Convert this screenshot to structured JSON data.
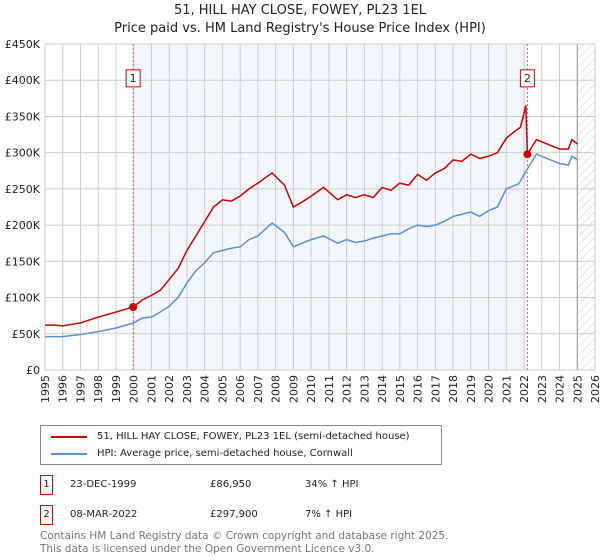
{
  "chart_data": {
    "type": "line",
    "title": "51, HILL HAY CLOSE, FOWEY, PL23 1EL",
    "subtitle": "Price paid vs. HM Land Registry's House Price Index (HPI)",
    "xlim": [
      1995,
      2026
    ],
    "ylim": [
      0,
      450000
    ],
    "x_ticks": [
      "1995",
      "1996",
      "1997",
      "1998",
      "1999",
      "2000",
      "2001",
      "2002",
      "2003",
      "2004",
      "2005",
      "2006",
      "2007",
      "2008",
      "2009",
      "2010",
      "2011",
      "2012",
      "2013",
      "2014",
      "2015",
      "2016",
      "2017",
      "2018",
      "2019",
      "2020",
      "2021",
      "2022",
      "2023",
      "2024",
      "2025",
      "2026"
    ],
    "y_ticks": [
      "£0",
      "£50K",
      "£100K",
      "£150K",
      "£200K",
      "£250K",
      "£300K",
      "£350K",
      "£400K",
      "£450K"
    ],
    "grid": true,
    "series": [
      {
        "name": "51, HILL HAY CLOSE, FOWEY, PL23 1EL (semi-detached house)",
        "color": "#cc0000",
        "x": [
          1995,
          1995.5,
          1996,
          1997,
          1998,
          1999,
          1999.97,
          2000.5,
          2001,
          2001.5,
          2002,
          2002.5,
          2003,
          2003.5,
          2004,
          2004.5,
          2005,
          2005.5,
          2006,
          2006.5,
          2007,
          2007.8,
          2008.5,
          2009,
          2009.5,
          2010,
          2010.7,
          2011.5,
          2012,
          2012.5,
          2013,
          2013.5,
          2014,
          2014.5,
          2015,
          2015.5,
          2016,
          2016.5,
          2017,
          2017.5,
          2018,
          2018.5,
          2019,
          2019.5,
          2020,
          2020.5,
          2021,
          2021.5,
          2021.8,
          2022.1,
          2022.19,
          2022.7,
          2023,
          2023.5,
          2024,
          2024.5,
          2024.7,
          2025
        ],
        "y": [
          62000,
          62000,
          61000,
          65000,
          73000,
          80000,
          86950,
          97000,
          103000,
          110000,
          125000,
          140000,
          165000,
          185000,
          205000,
          225000,
          235000,
          233000,
          240000,
          250000,
          258000,
          272000,
          255000,
          225000,
          232000,
          240000,
          252000,
          235000,
          242000,
          238000,
          242000,
          238000,
          252000,
          248000,
          258000,
          255000,
          270000,
          262000,
          272000,
          278000,
          290000,
          288000,
          298000,
          292000,
          295000,
          300000,
          320000,
          330000,
          335000,
          365000,
          297900,
          318000,
          315000,
          310000,
          305000,
          305000,
          318000,
          312000
        ]
      },
      {
        "name": "HPI: Average price, semi-detached house, Cornwall",
        "color": "#5b8fd4",
        "x": [
          1995,
          1996,
          1997,
          1998,
          1999,
          2000,
          2000.5,
          2001,
          2001.5,
          2002,
          2002.5,
          2003,
          2003.5,
          2004,
          2004.5,
          2005,
          2005.5,
          2006,
          2006.5,
          2007,
          2007.8,
          2008.5,
          2009,
          2009.5,
          2010,
          2010.7,
          2011.5,
          2012,
          2012.5,
          2013,
          2013.5,
          2014,
          2014.5,
          2015,
          2015.5,
          2016,
          2016.5,
          2017,
          2017.5,
          2018,
          2018.5,
          2019,
          2019.5,
          2020,
          2020.5,
          2021,
          2021.7,
          2022.2,
          2022.7,
          2023,
          2023.5,
          2024,
          2024.5,
          2024.7,
          2025
        ],
        "y": [
          46000,
          46000,
          49000,
          53000,
          58000,
          65000,
          72000,
          73000,
          80000,
          88000,
          100000,
          120000,
          137000,
          148000,
          162000,
          165000,
          168000,
          170000,
          180000,
          185000,
          203000,
          190000,
          170000,
          175000,
          180000,
          185000,
          175000,
          180000,
          176000,
          178000,
          182000,
          185000,
          188000,
          188000,
          195000,
          200000,
          198000,
          200000,
          205000,
          212000,
          215000,
          218000,
          212000,
          220000,
          225000,
          250000,
          257000,
          278000,
          298000,
          295000,
          290000,
          285000,
          283000,
          295000,
          290000
        ]
      }
    ],
    "annotations": [
      {
        "label": "1",
        "x": 1999.97,
        "y": 86950
      },
      {
        "label": "2",
        "x": 2022.19,
        "y": 297900
      }
    ],
    "forecast_hatch_from": 2025
  },
  "legend": {
    "items": [
      "51, HILL HAY CLOSE, FOWEY, PL23 1EL (semi-detached house)",
      "HPI: Average price, semi-detached house, Cornwall"
    ]
  },
  "sales": [
    {
      "num": "1",
      "date": "23-DEC-1999",
      "price": "£86,950",
      "hpi": "34% ↑ HPI"
    },
    {
      "num": "2",
      "date": "08-MAR-2022",
      "price": "£297,900",
      "hpi": "7% ↑ HPI"
    }
  ],
  "footer": {
    "line1": "Contains HM Land Registry data © Crown copyright and database right 2025.",
    "line2": "This data is licensed under the Open Government Licence v3.0."
  }
}
